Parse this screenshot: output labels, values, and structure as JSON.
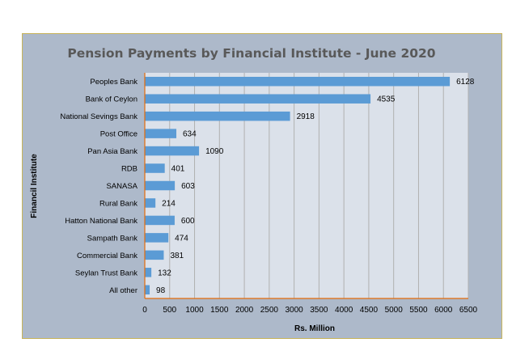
{
  "chart_data": {
    "type": "bar",
    "orientation": "horizontal",
    "title": "Pension Payments by Financial Institute - June 2020",
    "xlabel": "Rs. Million",
    "ylabel": "Financil Institute",
    "categories": [
      "Peoples Bank",
      "Bank of Ceylon",
      "National Sevings Bank",
      "Post Office",
      "Pan Asia Bank",
      "RDB",
      "SANASA",
      "Rural Bank",
      "Hatton National Bank",
      "Sampath Bank",
      "Commercial Bank",
      "Seylan Trust Bank",
      "All other"
    ],
    "values": [
      6128,
      4535,
      2918,
      634,
      1090,
      401,
      603,
      214,
      600,
      474,
      381,
      132,
      98
    ],
    "xlim": [
      0,
      6500
    ],
    "xticks": [
      "0",
      "500",
      "1000",
      "1500",
      "2000",
      "2500",
      "3000",
      "3500",
      "4000",
      "4500",
      "5000",
      "5500",
      "6000",
      "6500"
    ],
    "grid": true,
    "colors": {
      "bar": "#5b9bd5",
      "plot_background": "#dbe1ea",
      "chart_background": "#adb9ca",
      "axis_line": "#e46c0a",
      "gridline": "#b0b0b0"
    }
  }
}
